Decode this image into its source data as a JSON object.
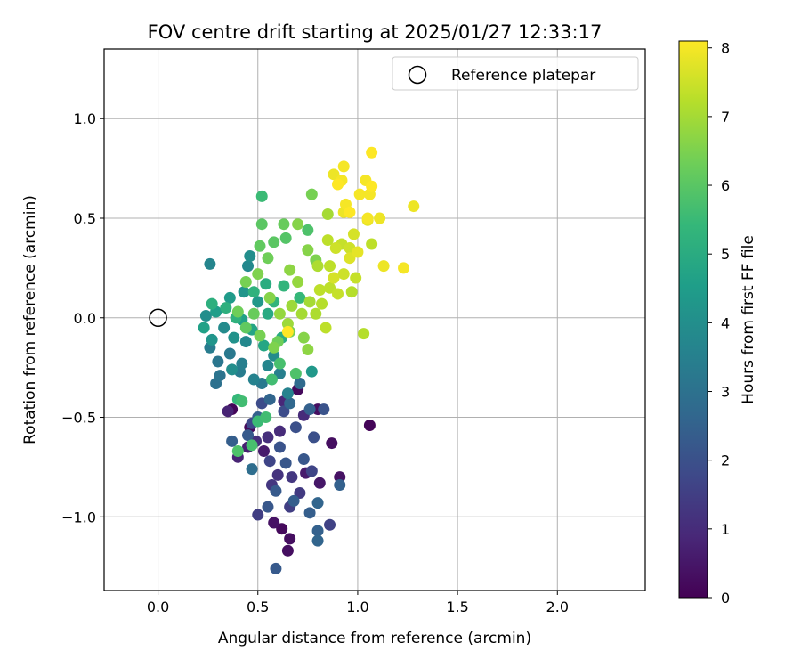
{
  "chart_data": {
    "type": "scatter",
    "title": "FOV centre drift starting at 2025/01/27 12:33:17",
    "xlabel": "Angular distance from reference (arcmin)",
    "ylabel": "Rotation from reference (arcmin)",
    "xlim": [
      -0.27,
      2.44
    ],
    "ylim": [
      -1.37,
      1.35
    ],
    "xticks": [
      0.0,
      0.5,
      1.0,
      1.5,
      2.0
    ],
    "xtick_labels": [
      "0.0",
      "0.5",
      "1.0",
      "1.5",
      "2.0"
    ],
    "yticks": [
      -1.0,
      -0.5,
      0.0,
      0.5,
      1.0
    ],
    "ytick_labels": [
      "−1.0",
      "−0.5",
      "0.0",
      "0.5",
      "1.0"
    ],
    "grid": true,
    "legend_position": "top-right",
    "legend": [
      {
        "label": "Reference platepar",
        "marker": "open-circle"
      }
    ],
    "reference_point": {
      "x": 0.0,
      "y": 0.0
    },
    "colorbar": {
      "label": "Hours from first FF file",
      "colormap": "viridis",
      "range": [
        0,
        8.1
      ],
      "ticks": [
        0,
        1,
        2,
        3,
        4,
        5,
        6,
        7,
        8
      ],
      "tick_labels": [
        "0",
        "1",
        "2",
        "3",
        "4",
        "5",
        "6",
        "7",
        "8"
      ]
    },
    "colormap_stops": [
      "#440154",
      "#482878",
      "#3e4989",
      "#31688e",
      "#26828e",
      "#1f9e89",
      "#35b779",
      "#6ece58",
      "#b5de2b",
      "#fde725"
    ],
    "points": [
      {
        "x": 0.37,
        "y": -0.46,
        "t": 0.1
      },
      {
        "x": 0.46,
        "y": -0.55,
        "t": 0.2
      },
      {
        "x": 0.62,
        "y": -1.06,
        "t": 0.2
      },
      {
        "x": 0.66,
        "y": -1.11,
        "t": 0.3
      },
      {
        "x": 0.58,
        "y": -1.03,
        "t": 0.4
      },
      {
        "x": 0.65,
        "y": -1.17,
        "t": 0.3
      },
      {
        "x": 0.7,
        "y": -0.36,
        "t": 0.2
      },
      {
        "x": 0.8,
        "y": -0.46,
        "t": 0.3
      },
      {
        "x": 1.06,
        "y": -0.54,
        "t": 0.1
      },
      {
        "x": 0.87,
        "y": -0.63,
        "t": 0.3
      },
      {
        "x": 0.91,
        "y": -0.8,
        "t": 0.4
      },
      {
        "x": 0.81,
        "y": -0.83,
        "t": 0.5
      },
      {
        "x": 0.74,
        "y": -0.78,
        "t": 0.6
      },
      {
        "x": 0.53,
        "y": -0.67,
        "t": 0.6
      },
      {
        "x": 0.45,
        "y": -0.65,
        "t": 0.7
      },
      {
        "x": 0.4,
        "y": -0.7,
        "t": 0.8
      },
      {
        "x": 0.35,
        "y": -0.47,
        "t": 0.8
      },
      {
        "x": 0.63,
        "y": -0.42,
        "t": 0.9
      },
      {
        "x": 0.73,
        "y": -0.49,
        "t": 1.0
      },
      {
        "x": 0.61,
        "y": -0.57,
        "t": 1.0
      },
      {
        "x": 0.55,
        "y": -0.6,
        "t": 1.1
      },
      {
        "x": 0.49,
        "y": -0.62,
        "t": 1.1
      },
      {
        "x": 0.6,
        "y": -0.79,
        "t": 1.2
      },
      {
        "x": 0.57,
        "y": -0.84,
        "t": 1.3
      },
      {
        "x": 0.67,
        "y": -0.8,
        "t": 1.3
      },
      {
        "x": 0.71,
        "y": -0.88,
        "t": 1.4
      },
      {
        "x": 0.5,
        "y": -0.99,
        "t": 1.5
      },
      {
        "x": 0.66,
        "y": -0.95,
        "t": 1.5
      },
      {
        "x": 0.86,
        "y": -1.04,
        "t": 1.6
      },
      {
        "x": 0.77,
        "y": -0.77,
        "t": 1.7
      },
      {
        "x": 0.56,
        "y": -0.72,
        "t": 1.7
      },
      {
        "x": 0.47,
        "y": -0.53,
        "t": 1.8
      },
      {
        "x": 0.52,
        "y": -0.43,
        "t": 1.9
      },
      {
        "x": 0.63,
        "y": -0.47,
        "t": 1.9
      },
      {
        "x": 0.69,
        "y": -0.55,
        "t": 2.0
      },
      {
        "x": 0.78,
        "y": -0.6,
        "t": 2.0
      },
      {
        "x": 0.83,
        "y": -0.46,
        "t": 2.1
      },
      {
        "x": 0.73,
        "y": -0.71,
        "t": 2.2
      },
      {
        "x": 0.64,
        "y": -0.73,
        "t": 2.2
      },
      {
        "x": 0.59,
        "y": -0.87,
        "t": 2.3
      },
      {
        "x": 0.68,
        "y": -0.92,
        "t": 2.4
      },
      {
        "x": 0.76,
        "y": -0.98,
        "t": 2.4
      },
      {
        "x": 0.8,
        "y": -1.07,
        "t": 2.5
      },
      {
        "x": 0.8,
        "y": -1.12,
        "t": 2.6
      },
      {
        "x": 0.59,
        "y": -1.26,
        "t": 2.3
      },
      {
        "x": 0.55,
        "y": -0.95,
        "t": 2.2
      },
      {
        "x": 0.61,
        "y": -0.65,
        "t": 2.1
      },
      {
        "x": 0.45,
        "y": -0.59,
        "t": 2.3
      },
      {
        "x": 0.37,
        "y": -0.62,
        "t": 2.4
      },
      {
        "x": 0.5,
        "y": -0.5,
        "t": 2.5
      },
      {
        "x": 0.56,
        "y": -0.41,
        "t": 2.6
      },
      {
        "x": 0.66,
        "y": -0.43,
        "t": 2.7
      },
      {
        "x": 0.71,
        "y": -0.33,
        "t": 2.8
      },
      {
        "x": 0.76,
        "y": -0.46,
        "t": 2.5
      },
      {
        "x": 0.8,
        "y": -0.93,
        "t": 2.6
      },
      {
        "x": 0.91,
        "y": -0.84,
        "t": 2.5
      },
      {
        "x": 0.47,
        "y": -0.76,
        "t": 2.9
      },
      {
        "x": 0.29,
        "y": -0.33,
        "t": 3.0
      },
      {
        "x": 0.31,
        "y": -0.29,
        "t": 3.1
      },
      {
        "x": 0.3,
        "y": -0.22,
        "t": 3.2
      },
      {
        "x": 0.36,
        "y": -0.18,
        "t": 3.3
      },
      {
        "x": 0.26,
        "y": -0.15,
        "t": 3.4
      },
      {
        "x": 0.42,
        "y": -0.23,
        "t": 3.5
      },
      {
        "x": 0.48,
        "y": -0.31,
        "t": 3.6
      },
      {
        "x": 0.55,
        "y": -0.24,
        "t": 3.7
      },
      {
        "x": 0.44,
        "y": -0.12,
        "t": 3.8
      },
      {
        "x": 0.33,
        "y": -0.05,
        "t": 3.9
      },
      {
        "x": 0.24,
        "y": 0.01,
        "t": 4.0
      },
      {
        "x": 0.41,
        "y": -0.27,
        "t": 3.4
      },
      {
        "x": 0.52,
        "y": -0.33,
        "t": 3.3
      },
      {
        "x": 0.61,
        "y": -0.28,
        "t": 3.5
      },
      {
        "x": 0.65,
        "y": -0.38,
        "t": 3.6
      },
      {
        "x": 0.58,
        "y": -0.19,
        "t": 3.9
      },
      {
        "x": 0.37,
        "y": -0.26,
        "t": 4.0
      },
      {
        "x": 0.38,
        "y": -0.1,
        "t": 4.1
      },
      {
        "x": 0.27,
        "y": -0.11,
        "t": 4.2
      },
      {
        "x": 0.26,
        "y": 0.27,
        "t": 3.7
      },
      {
        "x": 0.45,
        "y": 0.26,
        "t": 3.8
      },
      {
        "x": 0.46,
        "y": 0.31,
        "t": 4.0
      },
      {
        "x": 0.43,
        "y": 0.13,
        "t": 4.2
      },
      {
        "x": 0.5,
        "y": 0.08,
        "t": 4.3
      },
      {
        "x": 0.36,
        "y": 0.1,
        "t": 4.4
      },
      {
        "x": 0.29,
        "y": 0.03,
        "t": 4.5
      },
      {
        "x": 0.23,
        "y": -0.05,
        "t": 4.6
      },
      {
        "x": 0.42,
        "y": -0.01,
        "t": 4.6
      },
      {
        "x": 0.47,
        "y": -0.06,
        "t": 4.7
      },
      {
        "x": 0.53,
        "y": -0.14,
        "t": 4.8
      },
      {
        "x": 0.55,
        "y": 0.02,
        "t": 4.9
      },
      {
        "x": 0.62,
        "y": -0.1,
        "t": 5.0
      },
      {
        "x": 0.54,
        "y": 0.17,
        "t": 5.0
      },
      {
        "x": 0.34,
        "y": 0.05,
        "t": 5.1
      },
      {
        "x": 0.27,
        "y": 0.07,
        "t": 5.1
      },
      {
        "x": 0.39,
        "y": 0.0,
        "t": 5.2
      },
      {
        "x": 0.48,
        "y": 0.13,
        "t": 5.2
      },
      {
        "x": 0.58,
        "y": 0.08,
        "t": 5.3
      },
      {
        "x": 0.63,
        "y": 0.16,
        "t": 5.3
      },
      {
        "x": 0.71,
        "y": 0.1,
        "t": 5.4
      },
      {
        "x": 0.77,
        "y": -0.27,
        "t": 4.3
      },
      {
        "x": 0.4,
        "y": -0.41,
        "t": 5.4
      },
      {
        "x": 0.42,
        "y": -0.42,
        "t": 5.6
      },
      {
        "x": 0.5,
        "y": -0.52,
        "t": 5.5
      },
      {
        "x": 0.54,
        "y": -0.5,
        "t": 5.6
      },
      {
        "x": 0.47,
        "y": -0.64,
        "t": 5.7
      },
      {
        "x": 0.4,
        "y": -0.67,
        "t": 5.8
      },
      {
        "x": 0.57,
        "y": -0.31,
        "t": 5.6
      },
      {
        "x": 0.61,
        "y": -0.23,
        "t": 5.7
      },
      {
        "x": 0.69,
        "y": -0.28,
        "t": 5.8
      },
      {
        "x": 0.52,
        "y": 0.61,
        "t": 5.5
      },
      {
        "x": 0.52,
        "y": 0.47,
        "t": 6.0
      },
      {
        "x": 0.63,
        "y": 0.47,
        "t": 6.2
      },
      {
        "x": 0.58,
        "y": 0.38,
        "t": 6.0
      },
      {
        "x": 0.64,
        "y": 0.4,
        "t": 5.9
      },
      {
        "x": 0.75,
        "y": 0.44,
        "t": 5.8
      },
      {
        "x": 0.51,
        "y": 0.36,
        "t": 6.1
      },
      {
        "x": 0.55,
        "y": 0.3,
        "t": 6.3
      },
      {
        "x": 0.44,
        "y": 0.18,
        "t": 6.4
      },
      {
        "x": 0.5,
        "y": 0.22,
        "t": 6.5
      },
      {
        "x": 0.56,
        "y": 0.1,
        "t": 6.6
      },
      {
        "x": 0.66,
        "y": 0.24,
        "t": 6.7
      },
      {
        "x": 0.7,
        "y": 0.18,
        "t": 6.8
      },
      {
        "x": 0.75,
        "y": 0.34,
        "t": 6.6
      },
      {
        "x": 0.79,
        "y": 0.29,
        "t": 6.5
      },
      {
        "x": 0.77,
        "y": 0.62,
        "t": 6.4
      },
      {
        "x": 0.7,
        "y": 0.47,
        "t": 6.6
      },
      {
        "x": 0.48,
        "y": 0.02,
        "t": 6.2
      },
      {
        "x": 0.4,
        "y": 0.03,
        "t": 6.3
      },
      {
        "x": 0.44,
        "y": -0.05,
        "t": 6.1
      },
      {
        "x": 0.51,
        "y": -0.09,
        "t": 6.4
      },
      {
        "x": 0.6,
        "y": -0.12,
        "t": 6.3
      },
      {
        "x": 0.58,
        "y": -0.15,
        "t": 6.5
      },
      {
        "x": 0.66,
        "y": -0.07,
        "t": 6.4
      },
      {
        "x": 0.73,
        "y": -0.1,
        "t": 6.6
      },
      {
        "x": 0.75,
        "y": -0.16,
        "t": 6.7
      },
      {
        "x": 0.61,
        "y": 0.02,
        "t": 6.8
      },
      {
        "x": 0.67,
        "y": 0.06,
        "t": 6.9
      },
      {
        "x": 0.72,
        "y": 0.02,
        "t": 7.0
      },
      {
        "x": 0.65,
        "y": -0.03,
        "t": 6.9
      },
      {
        "x": 0.76,
        "y": 0.08,
        "t": 7.0
      },
      {
        "x": 0.79,
        "y": 0.02,
        "t": 7.1
      },
      {
        "x": 0.82,
        "y": 0.07,
        "t": 7.2
      },
      {
        "x": 0.81,
        "y": 0.14,
        "t": 7.3
      },
      {
        "x": 0.86,
        "y": 0.15,
        "t": 7.3
      },
      {
        "x": 0.9,
        "y": 0.12,
        "t": 7.4
      },
      {
        "x": 0.99,
        "y": 0.2,
        "t": 7.4
      },
      {
        "x": 0.97,
        "y": 0.13,
        "t": 7.2
      },
      {
        "x": 0.8,
        "y": 0.26,
        "t": 7.1
      },
      {
        "x": 0.86,
        "y": 0.26,
        "t": 7.3
      },
      {
        "x": 0.85,
        "y": 0.52,
        "t": 7.0
      },
      {
        "x": 0.85,
        "y": 0.39,
        "t": 7.3
      },
      {
        "x": 0.89,
        "y": 0.35,
        "t": 7.5
      },
      {
        "x": 0.92,
        "y": 0.37,
        "t": 7.4
      },
      {
        "x": 0.96,
        "y": 0.35,
        "t": 7.5
      },
      {
        "x": 0.98,
        "y": 0.42,
        "t": 7.6
      },
      {
        "x": 1.07,
        "y": 0.37,
        "t": 7.3
      },
      {
        "x": 1.03,
        "y": -0.08,
        "t": 7.2
      },
      {
        "x": 0.84,
        "y": -0.05,
        "t": 7.3
      },
      {
        "x": 0.93,
        "y": 0.22,
        "t": 7.5
      },
      {
        "x": 0.88,
        "y": 0.2,
        "t": 7.6
      },
      {
        "x": 0.96,
        "y": 0.3,
        "t": 7.7
      },
      {
        "x": 1.0,
        "y": 0.33,
        "t": 7.8
      },
      {
        "x": 1.05,
        "y": 0.49,
        "t": 7.8
      },
      {
        "x": 1.11,
        "y": 0.5,
        "t": 7.9
      },
      {
        "x": 1.13,
        "y": 0.26,
        "t": 7.9
      },
      {
        "x": 1.23,
        "y": 0.25,
        "t": 8.0
      },
      {
        "x": 1.28,
        "y": 0.56,
        "t": 7.9
      },
      {
        "x": 1.01,
        "y": 0.62,
        "t": 8.0
      },
      {
        "x": 1.06,
        "y": 0.62,
        "t": 8.0
      },
      {
        "x": 1.07,
        "y": 0.66,
        "t": 8.1
      },
      {
        "x": 1.04,
        "y": 0.69,
        "t": 8.0
      },
      {
        "x": 1.07,
        "y": 0.83,
        "t": 8.1
      },
      {
        "x": 0.93,
        "y": 0.76,
        "t": 8.0
      },
      {
        "x": 0.88,
        "y": 0.72,
        "t": 7.9
      },
      {
        "x": 0.92,
        "y": 0.69,
        "t": 8.0
      },
      {
        "x": 0.9,
        "y": 0.67,
        "t": 8.1
      },
      {
        "x": 0.94,
        "y": 0.57,
        "t": 8.0
      },
      {
        "x": 0.93,
        "y": 0.53,
        "t": 7.9
      },
      {
        "x": 0.96,
        "y": 0.53,
        "t": 8.1
      },
      {
        "x": 1.05,
        "y": 0.5,
        "t": 8.0
      },
      {
        "x": 0.65,
        "y": -0.07,
        "t": 8.1
      }
    ]
  }
}
